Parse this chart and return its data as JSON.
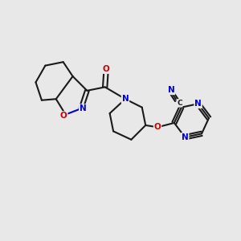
{
  "background_color": "#e8e8e8",
  "bond_color": "#1a1a1a",
  "N_color": "#0000cc",
  "O_color": "#cc0000",
  "bond_width": 1.5,
  "font_size": 7.5,
  "fig_w": 3.0,
  "fig_h": 3.0,
  "dpi": 100,
  "xlim": [
    0,
    10
  ],
  "ylim": [
    1,
    9
  ]
}
